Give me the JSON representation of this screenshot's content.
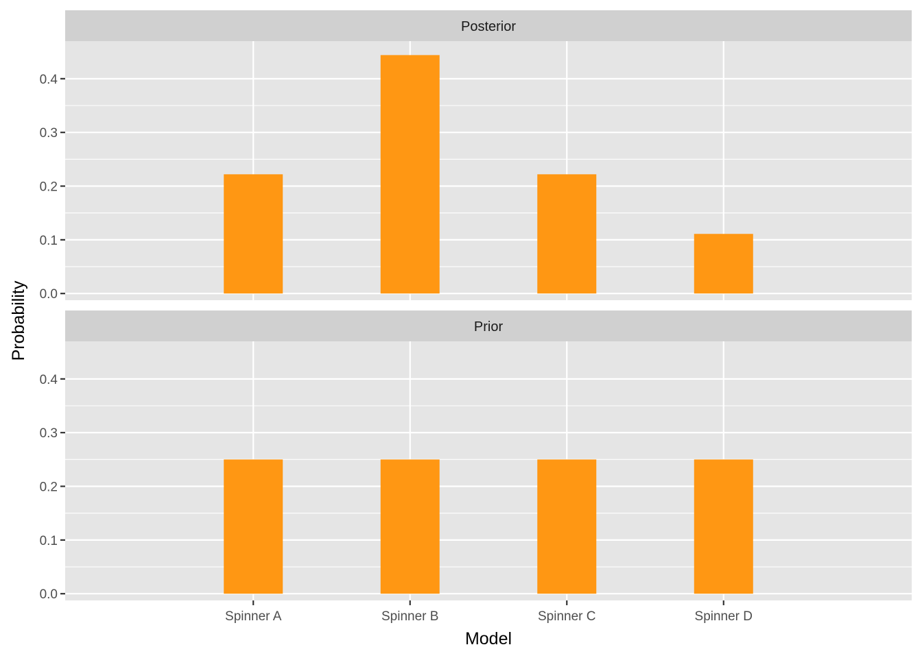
{
  "chart_data": {
    "type": "bar",
    "facet_layout": "vertical",
    "xlabel": "Model",
    "ylabel": "Probability",
    "categories": [
      "Spinner A",
      "Spinner B",
      "Spinner C",
      "Spinner D"
    ],
    "ylim": [
      -0.0125,
      0.47
    ],
    "yticks": [
      0.0,
      0.1,
      0.2,
      0.3,
      0.4
    ],
    "ytick_labels": [
      "0.0",
      "0.1",
      "0.2",
      "0.3",
      "0.4"
    ],
    "grid": true,
    "bar_color": "#FF9713",
    "panel_background": "#E5E5E5",
    "strip_background": "#D0D0D0",
    "gridline_color": "#FFFFFF",
    "panels": [
      {
        "title": "Posterior",
        "values": [
          0.222,
          0.444,
          0.222,
          0.111
        ]
      },
      {
        "title": "Prior",
        "values": [
          0.25,
          0.25,
          0.25,
          0.25
        ]
      }
    ]
  }
}
